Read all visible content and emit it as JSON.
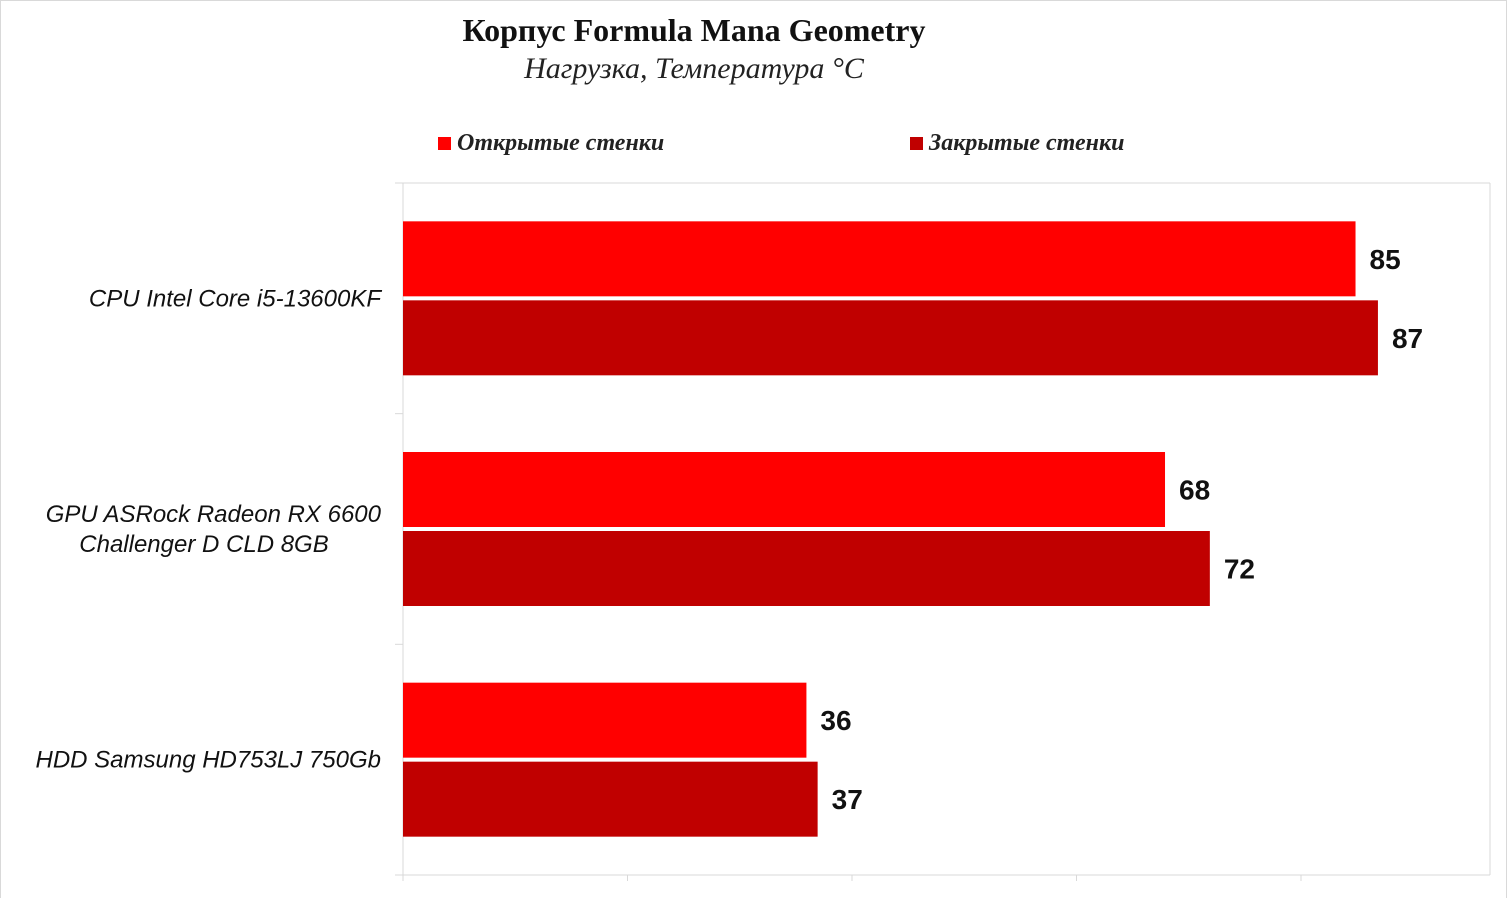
{
  "title": "Корпус Formula Mana Geometry",
  "subtitle": "Нагрузка, Температура °C",
  "colors": {
    "open": "#ff0000",
    "closed": "#c00000",
    "grid": "#d9d9d9"
  },
  "legend": [
    {
      "label": "Открытые стенки",
      "color": "#ff0000"
    },
    {
      "label": "Закрытые стенки",
      "color": "#c00000"
    }
  ],
  "chart_data": {
    "type": "bar",
    "orientation": "horizontal",
    "title": "Корпус Formula Mana Geometry",
    "subtitle": "Нагрузка, Температура °C",
    "categories": [
      [
        "CPU Intel Core i5-13600KF"
      ],
      [
        "GPU ASRock Radeon RX 6600",
        "Challenger D CLD 8GB"
      ],
      [
        "HDD Samsung HD753LJ 750Gb"
      ]
    ],
    "series": [
      {
        "name": "Открытые стенки",
        "values": [
          85,
          68,
          36
        ]
      },
      {
        "name": "Закрытые стенки",
        "values": [
          87,
          72,
          37
        ]
      }
    ],
    "xlim": [
      0,
      97
    ],
    "legend_position": "top",
    "grid": false
  }
}
